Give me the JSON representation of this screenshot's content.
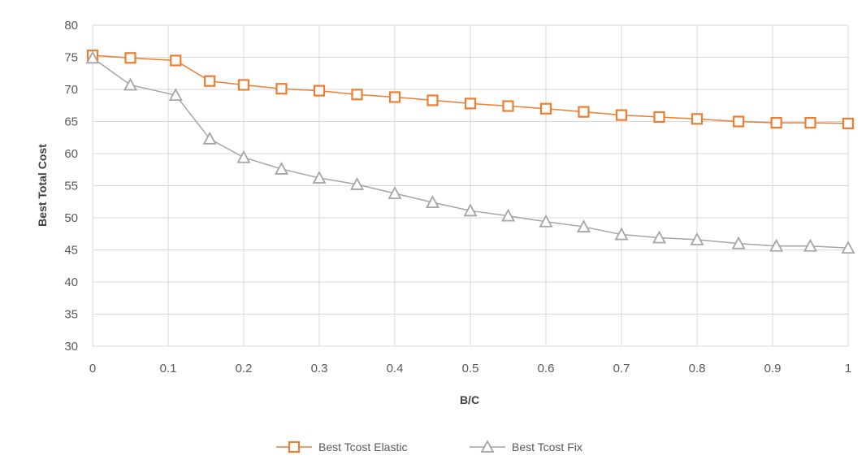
{
  "chart_data": {
    "type": "line",
    "xlabel": "B/C",
    "ylabel": "Best Total Cost",
    "xlim": [
      0,
      1
    ],
    "ylim": [
      30,
      80
    ],
    "x_ticks": [
      "0",
      "0.1",
      "0.2",
      "0.3",
      "0.4",
      "0.5",
      "0.6",
      "0.7",
      "0.8",
      "0.9",
      "1"
    ],
    "y_ticks": [
      "30",
      "35",
      "40",
      "45",
      "50",
      "55",
      "60",
      "65",
      "70",
      "75",
      "80"
    ],
    "grid": "vertical and horizontal",
    "legend_position": "bottom",
    "series": [
      {
        "name": "Best Tcost Elastic",
        "marker": "square",
        "color": "#ED7D31",
        "x": [
          0,
          0.05,
          0.11,
          0.155,
          0.2,
          0.25,
          0.3,
          0.35,
          0.4,
          0.45,
          0.5,
          0.55,
          0.6,
          0.65,
          0.7,
          0.75,
          0.8,
          0.855,
          0.905,
          0.95,
          1.0
        ],
        "values": [
          75.3,
          74.9,
          74.5,
          71.3,
          70.7,
          70.1,
          69.8,
          69.2,
          68.8,
          68.3,
          67.8,
          67.4,
          67.0,
          66.5,
          66.0,
          65.7,
          65.4,
          65.0,
          64.8,
          64.8,
          64.7
        ]
      },
      {
        "name": "Best Tcost Fix",
        "marker": "triangle",
        "color": "#A5A5A5",
        "x": [
          0,
          0.05,
          0.11,
          0.155,
          0.2,
          0.25,
          0.3,
          0.35,
          0.4,
          0.45,
          0.5,
          0.55,
          0.6,
          0.65,
          0.7,
          0.75,
          0.8,
          0.855,
          0.905,
          0.95,
          1.0
        ],
        "values": [
          74.9,
          70.7,
          69.1,
          62.3,
          59.4,
          57.6,
          56.2,
          55.2,
          53.8,
          52.4,
          51.1,
          50.3,
          49.4,
          48.6,
          47.4,
          46.9,
          46.6,
          46.0,
          45.6,
          45.6,
          45.3
        ]
      }
    ]
  }
}
